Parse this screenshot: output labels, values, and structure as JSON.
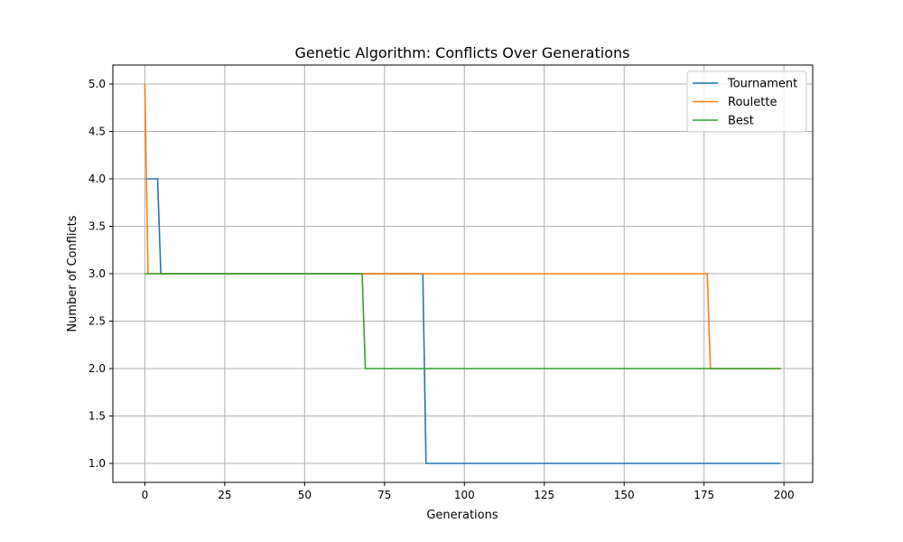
{
  "chart_data": {
    "type": "line",
    "title": "Genetic Algorithm: Conflicts Over Generations",
    "xlabel": "Generations",
    "ylabel": "Number of Conflicts",
    "xlim": [
      -10,
      209
    ],
    "ylim": [
      0.8,
      5.2
    ],
    "xticks": [
      0,
      25,
      50,
      75,
      100,
      125,
      150,
      175,
      200
    ],
    "xtick_labels": [
      "0",
      "25",
      "50",
      "75",
      "100",
      "125",
      "150",
      "175",
      "200"
    ],
    "yticks": [
      1.0,
      1.5,
      2.0,
      2.5,
      3.0,
      3.5,
      4.0,
      4.5,
      5.0
    ],
    "ytick_labels": [
      "1.0",
      "1.5",
      "2.0",
      "2.5",
      "3.0",
      "3.5",
      "4.0",
      "4.5",
      "5.0"
    ],
    "grid": true,
    "legend_position": "top-right",
    "series": [
      {
        "name": "Tournament",
        "color": "#1f77b4",
        "points": [
          [
            0,
            4
          ],
          [
            4,
            4
          ],
          [
            5,
            3
          ],
          [
            87,
            3
          ],
          [
            88,
            1
          ],
          [
            199,
            1
          ]
        ]
      },
      {
        "name": "Roulette",
        "color": "#ff7f0e",
        "points": [
          [
            0,
            5
          ],
          [
            1,
            3
          ],
          [
            176,
            3
          ],
          [
            177,
            2
          ],
          [
            199,
            2
          ]
        ]
      },
      {
        "name": "Best",
        "color": "#2ca02c",
        "points": [
          [
            0,
            3
          ],
          [
            68,
            3
          ],
          [
            69,
            2
          ],
          [
            199,
            2
          ]
        ]
      }
    ]
  }
}
